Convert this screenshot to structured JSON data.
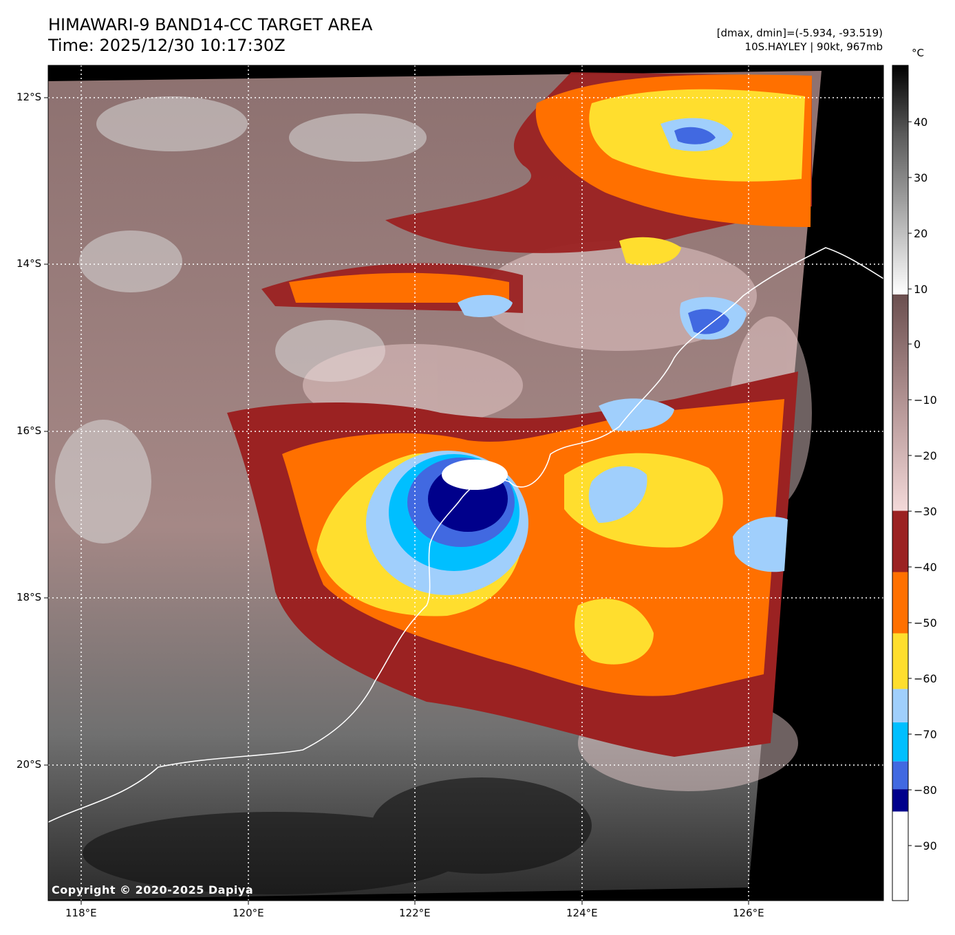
{
  "header": {
    "title_line1": "HIMAWARI-9 BAND14-CC TARGET AREA",
    "title_line2": "Time: 2025/12/30 10:17:30Z",
    "dminmax": "[dmax, dmin]=(-5.934, -93.519)",
    "storm": "10S.HAYLEY | 90kt, 967mb"
  },
  "axes": {
    "lat_labels": [
      "12°S",
      "14°S",
      "16°S",
      "18°S",
      "20°S"
    ],
    "lon_labels": [
      "118°E",
      "120°E",
      "122°E",
      "124°E",
      "126°E"
    ]
  },
  "colorbar": {
    "unit": "°C",
    "ticks": [
      "40",
      "30",
      "20",
      "10",
      "0",
      "−10",
      "−20",
      "−30",
      "−40",
      "−50",
      "−60",
      "−70",
      "−80",
      "−90"
    ],
    "range": [
      -100,
      50
    ],
    "bands": [
      {
        "from": -30,
        "to": -41,
        "color": "#9b2222"
      },
      {
        "from": -41,
        "to": -52,
        "color": "#ff7000"
      },
      {
        "from": -52,
        "to": -62,
        "color": "#ffde2e"
      },
      {
        "from": -62,
        "to": -68,
        "color": "#a0cffc"
      },
      {
        "from": -68,
        "to": -75,
        "color": "#00bfff"
      },
      {
        "from": -75,
        "to": -80,
        "color": "#4169e1"
      },
      {
        "from": -80,
        "to": -84,
        "color": "#00008b"
      },
      {
        "from": -84,
        "to": -100,
        "color": "#ffffff"
      }
    ]
  },
  "copyright": "Copyright © 2020-2025 Dapiya"
}
